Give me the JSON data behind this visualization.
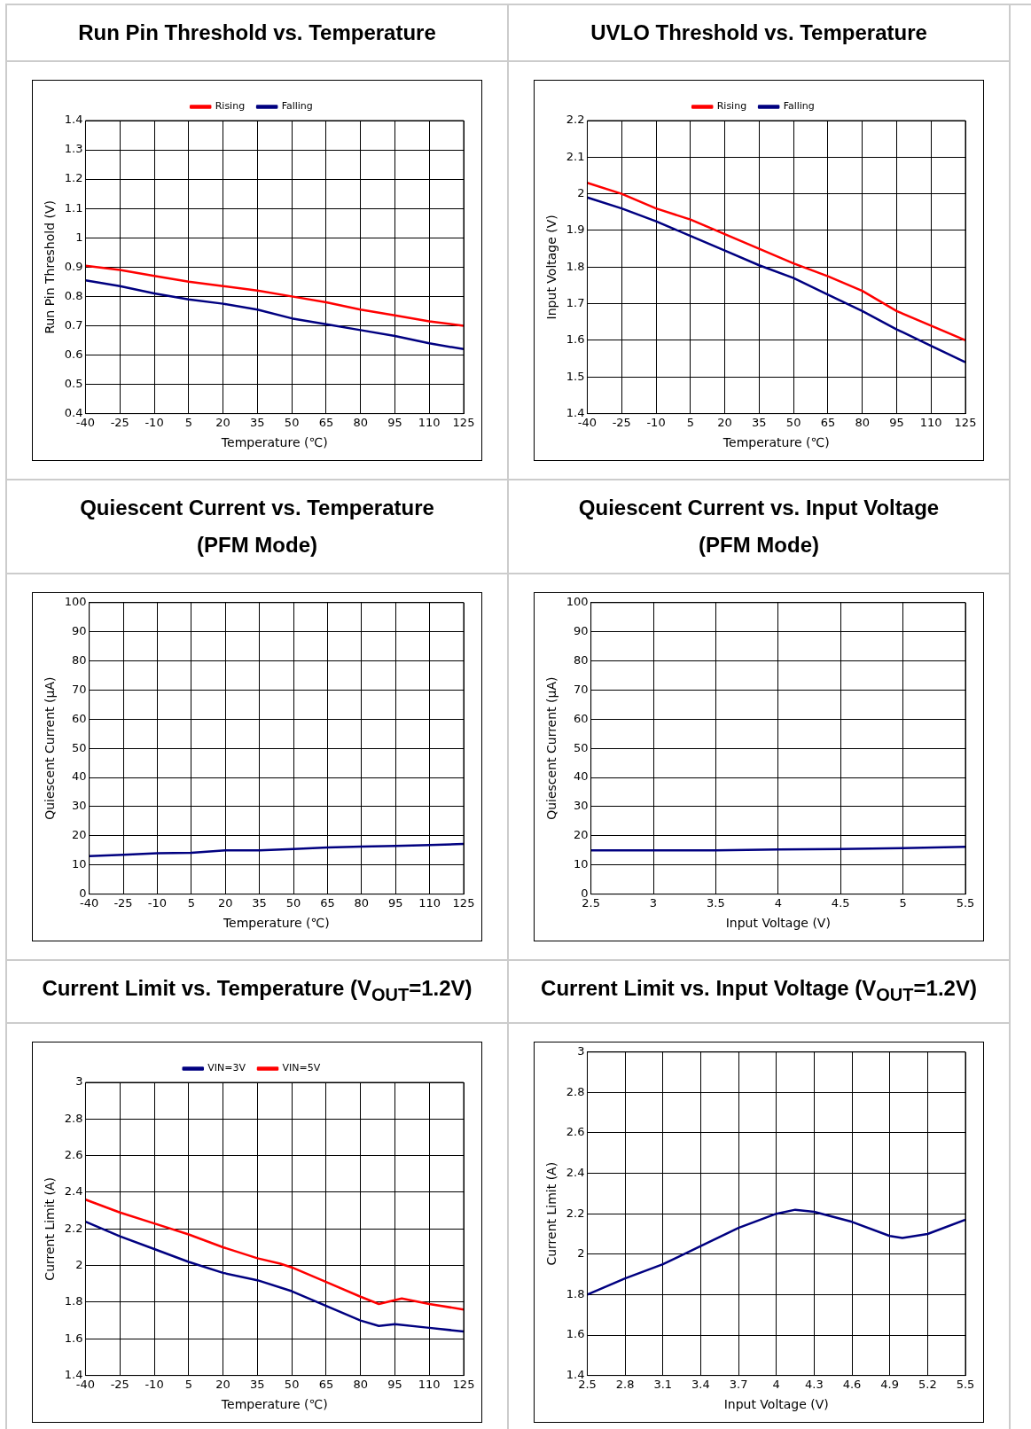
{
  "chart_data": [
    {
      "type": "line",
      "title": "Run Pin Threshold vs. Temperature",
      "xlabel": "Temperature (℃)",
      "ylabel": "Run Pin Threshold (V)",
      "x": [
        -40,
        -25,
        -10,
        5,
        20,
        35,
        50,
        65,
        80,
        95,
        110,
        125
      ],
      "xlim": [
        -40,
        125
      ],
      "xticks": [
        -40,
        -25,
        -10,
        5,
        20,
        35,
        50,
        65,
        80,
        95,
        110,
        125
      ],
      "ylim": [
        0.4,
        1.4
      ],
      "yticks": [
        0.4,
        0.5,
        0.6,
        0.7,
        0.8,
        0.9,
        1,
        1.1,
        1.2,
        1.3,
        1.4
      ],
      "grid": true,
      "legend": "top",
      "marker": "none",
      "series": [
        {
          "name": "Rising",
          "color": "#ff0000",
          "values": [
            0.905,
            0.89,
            0.87,
            0.85,
            0.835,
            0.82,
            0.8,
            0.78,
            0.755,
            0.735,
            0.715,
            0.7
          ]
        },
        {
          "name": "Falling",
          "color": "#000080",
          "values": [
            0.855,
            0.835,
            0.81,
            0.79,
            0.775,
            0.755,
            0.725,
            0.705,
            0.685,
            0.665,
            0.64,
            0.62
          ]
        }
      ]
    },
    {
      "type": "line",
      "title": "UVLO Threshold vs. Temperature",
      "xlabel": "Temperature (℃)",
      "ylabel": "Input Voltage (V)",
      "x": [
        -40,
        -25,
        -10,
        5,
        20,
        35,
        50,
        65,
        80,
        95,
        110,
        125
      ],
      "xlim": [
        -40,
        125
      ],
      "xticks": [
        -40,
        -25,
        -10,
        5,
        20,
        35,
        50,
        65,
        80,
        95,
        110,
        125
      ],
      "ylim": [
        1.4,
        2.2
      ],
      "yticks": [
        1.4,
        1.5,
        1.6,
        1.7,
        1.8,
        1.9,
        2,
        2.1,
        2.2
      ],
      "grid": true,
      "legend": "top",
      "marker": "none",
      "series": [
        {
          "name": "Rising",
          "color": "#ff0000",
          "values": [
            2.03,
            2,
            1.96,
            1.93,
            1.89,
            1.85,
            1.81,
            1.775,
            1.735,
            1.68,
            1.64,
            1.6
          ]
        },
        {
          "name": "Falling",
          "color": "#000080",
          "values": [
            1.99,
            1.96,
            1.925,
            1.885,
            1.845,
            1.805,
            1.77,
            1.725,
            1.68,
            1.63,
            1.585,
            1.54
          ]
        }
      ]
    },
    {
      "type": "line",
      "title": "Quiescent Current vs. Temperature",
      "subtitle": "(PFM Mode)",
      "xlabel": "Temperature (℃)",
      "ylabel": "Quiescent Current (μA)",
      "x": [
        -40,
        -25,
        -10,
        5,
        20,
        35,
        50,
        65,
        80,
        95,
        110,
        125
      ],
      "xlim": [
        -40,
        125
      ],
      "xticks": [
        -40,
        -25,
        -10,
        5,
        20,
        35,
        50,
        65,
        80,
        95,
        110,
        125
      ],
      "ylim": [
        0,
        100
      ],
      "yticks": [
        0,
        10,
        20,
        30,
        40,
        50,
        60,
        70,
        80,
        90,
        100
      ],
      "grid": true,
      "marker": "none",
      "series": [
        {
          "color": "#000080",
          "values": [
            13,
            13.5,
            14,
            14.2,
            15,
            15,
            15.5,
            16,
            16.3,
            16.5,
            16.8,
            17.2
          ]
        }
      ]
    },
    {
      "type": "line",
      "title": "Quiescent Current vs. Input Voltage",
      "subtitle": "(PFM Mode)",
      "xlabel": "Input Voltage (V)",
      "ylabel": "Quiescent Current (μA)",
      "x": [
        2.5,
        3,
        3.5,
        4,
        4.5,
        5,
        5.5
      ],
      "xlim": [
        2.5,
        5.5
      ],
      "xticks": [
        2.5,
        3,
        3.5,
        4,
        4.5,
        5,
        5.5
      ],
      "ylim": [
        0,
        100
      ],
      "yticks": [
        0,
        10,
        20,
        30,
        40,
        50,
        60,
        70,
        80,
        90,
        100
      ],
      "grid": true,
      "marker": "none",
      "series": [
        {
          "color": "#000080",
          "values": [
            15,
            15,
            15,
            15.3,
            15.5,
            15.8,
            16.2
          ]
        }
      ]
    },
    {
      "type": "line",
      "title": "Current Limit vs. Temperature (V$_{OUT}$=1.2V)",
      "xlabel": "Temperature (℃)",
      "ylabel": "Current Limit (A)",
      "xlim": [
        -40,
        125
      ],
      "xticks": [
        -40,
        -25,
        -10,
        5,
        20,
        35,
        50,
        65,
        80,
        95,
        110,
        125
      ],
      "ylim": [
        1.4,
        3
      ],
      "yticks": [
        1.4,
        1.6,
        1.8,
        2,
        2.2,
        2.4,
        2.6,
        2.8,
        3
      ],
      "grid": true,
      "legend": "top",
      "marker": "none",
      "series": [
        {
          "name": "VIN=3V",
          "color": "#000080",
          "x": [
            -40,
            -25,
            -10,
            5,
            20,
            35,
            50,
            65,
            80,
            88,
            95,
            110,
            125
          ],
          "values": [
            2.24,
            2.16,
            2.09,
            2.02,
            1.96,
            1.92,
            1.86,
            1.78,
            1.7,
            1.67,
            1.68,
            1.66,
            1.64
          ]
        },
        {
          "name": "VIN=5V",
          "color": "#ff0000",
          "x": [
            -40,
            -25,
            -10,
            5,
            20,
            35,
            45,
            50,
            65,
            80,
            88,
            98,
            110,
            125
          ],
          "values": [
            2.36,
            2.29,
            2.23,
            2.17,
            2.1,
            2.04,
            2.01,
            1.99,
            1.91,
            1.83,
            1.79,
            1.82,
            1.79,
            1.76
          ]
        }
      ]
    },
    {
      "type": "line",
      "title": "Current Limit vs. Input Voltage (V$_{OUT}$=1.2V)",
      "xlabel": "Input Voltage (V)",
      "ylabel": "Current Limit (A)",
      "x": [
        2.5,
        2.8,
        3.1,
        3.4,
        3.7,
        4,
        4.15,
        4.3,
        4.6,
        4.9,
        5,
        5.2,
        5.5
      ],
      "xlim": [
        2.5,
        5.5
      ],
      "xticks": [
        2.5,
        2.8,
        3.1,
        3.4,
        3.7,
        4,
        4.3,
        4.6,
        4.9,
        5.2,
        5.5
      ],
      "ylim": [
        1.4,
        3
      ],
      "yticks": [
        1.4,
        1.6,
        1.8,
        2,
        2.2,
        2.4,
        2.6,
        2.8,
        3
      ],
      "grid": true,
      "marker": "none",
      "series": [
        {
          "color": "#000080",
          "values": [
            1.8,
            1.88,
            1.95,
            2.04,
            2.13,
            2.2,
            2.22,
            2.21,
            2.16,
            2.09,
            2.08,
            2.1,
            2.17
          ]
        }
      ]
    }
  ]
}
